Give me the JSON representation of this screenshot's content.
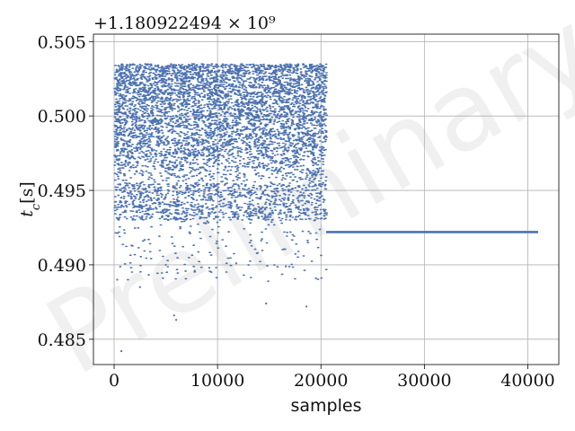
{
  "chart_data": {
    "type": "scatter",
    "title": "",
    "offset_text": "+1.180922494 × 10⁹",
    "xlabel": "samples",
    "ylabel": "t_c[s]",
    "ylabel_main": "t",
    "ylabel_sub": "c",
    "ylabel_unit": "[s]",
    "xlim": [
      -2000,
      43000
    ],
    "ylim": [
      0.4833,
      0.5055
    ],
    "xticks": [
      0,
      10000,
      20000,
      30000,
      40000
    ],
    "xtick_labels": [
      "0",
      "10000",
      "20000",
      "30000",
      "40000"
    ],
    "yticks": [
      0.485,
      0.49,
      0.495,
      0.5,
      0.505
    ],
    "ytick_labels": [
      "0.485",
      "0.490",
      "0.495",
      "0.500",
      "0.505"
    ],
    "grid": true,
    "color": "#4c72b0",
    "watermark": "Preliminary",
    "series": [
      {
        "kind": "scatter-cloud",
        "x_range": [
          0,
          20500
        ],
        "y_core_range": [
          0.4955,
          0.5035
        ],
        "y_tail_min": 0.484,
        "n_points": 20500
      },
      {
        "kind": "constant",
        "x_range": [
          20500,
          41000
        ],
        "y": 0.4922
      }
    ],
    "outliers": [
      {
        "x": 700,
        "y": 0.4842
      },
      {
        "x": 5800,
        "y": 0.4866
      },
      {
        "x": 6000,
        "y": 0.4863
      },
      {
        "x": 14700,
        "y": 0.4874
      },
      {
        "x": 18600,
        "y": 0.4872
      },
      {
        "x": 14900,
        "y": 0.4889
      },
      {
        "x": 300,
        "y": 0.489
      },
      {
        "x": 19500,
        "y": 0.4891
      },
      {
        "x": 2500,
        "y": 0.4885
      },
      {
        "x": 7800,
        "y": 0.4896
      },
      {
        "x": 5000,
        "y": 0.49
      },
      {
        "x": 9200,
        "y": 0.4898
      },
      {
        "x": 16600,
        "y": 0.4899
      },
      {
        "x": 11800,
        "y": 0.4901
      }
    ]
  }
}
